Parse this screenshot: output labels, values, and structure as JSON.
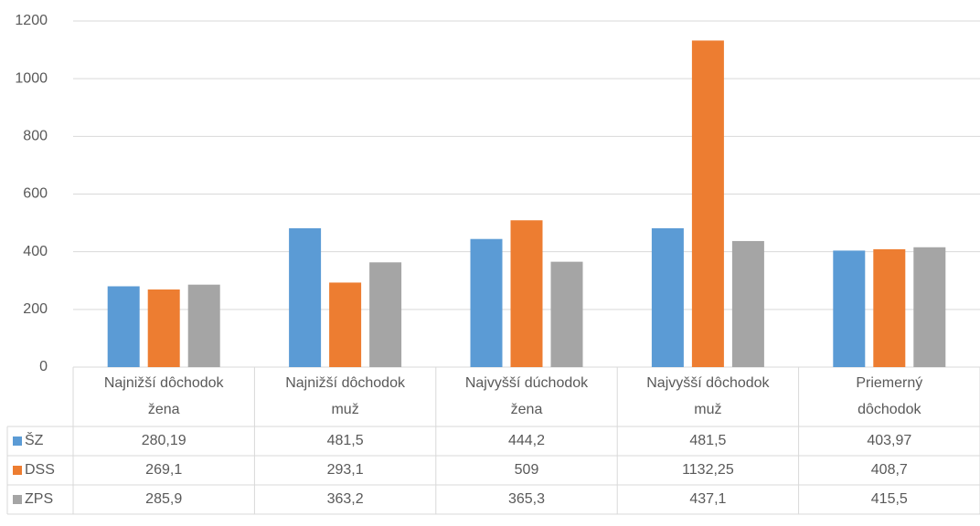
{
  "chart_data": {
    "type": "bar",
    "categories": [
      [
        "Najnižší dôchodok",
        "žena"
      ],
      [
        "Najnižší dôchodok",
        "muž"
      ],
      [
        "Najvyšší dúchodok",
        "žena"
      ],
      [
        "Najvyšší dôchodok",
        "muž"
      ],
      [
        "Priemerný",
        "dôchodok"
      ]
    ],
    "series": [
      {
        "name": "ŠZ",
        "color": "#5b9bd5",
        "values": [
          280.19,
          481.5,
          444.2,
          481.5,
          403.97
        ],
        "value_labels": [
          "280,19",
          "481,5",
          "444,2",
          "481,5",
          "403,97"
        ]
      },
      {
        "name": "DSS",
        "color": "#ed7d31",
        "values": [
          269.1,
          293.1,
          509,
          1132.25,
          408.7
        ],
        "value_labels": [
          "269,1",
          "293,1",
          "509",
          "1132,25",
          "408,7"
        ]
      },
      {
        "name": "ZPS",
        "color": "#a5a5a5",
        "values": [
          285.9,
          363.2,
          365.3,
          437.1,
          415.5
        ],
        "value_labels": [
          "285,9",
          "363,2",
          "365,3",
          "437,1",
          "415,5"
        ]
      }
    ],
    "ylim": [
      0,
      1200
    ],
    "yticks": [
      0,
      200,
      400,
      600,
      800,
      1000,
      1200
    ],
    "grid": true
  }
}
